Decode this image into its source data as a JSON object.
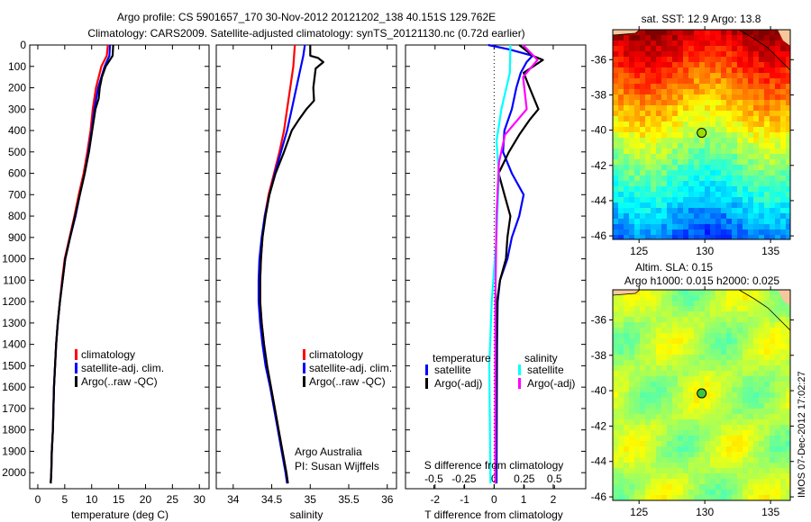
{
  "title": {
    "line1": "Argo profile: CS 5901657_170 30-Nov-2012 20121202_138 40.151S 129.762E",
    "line2": "Climatology: CARS2009. Satellite-adjusted climatology: synTS_20121130.nc (0.72d earlier)"
  },
  "colors": {
    "clim": "#ff0000",
    "sat": "#0000ff",
    "argo": "#000000",
    "s_sat": "#00ffff",
    "s_argo": "#ff00ff"
  },
  "credits": {
    "org": "Argo Australia",
    "pi": "PI: Susan Wijffels"
  },
  "timestamp": "IMOS 07-Dec-2012 17:02:27",
  "chart_data": [
    {
      "type": "line",
      "id": "temperature",
      "xlabel": "temperature (deg C)",
      "ylabel": "depth",
      "xlim": [
        -1.5,
        31.8
      ],
      "ylim": [
        0,
        2075
      ],
      "xticks": [
        0,
        5,
        10,
        15,
        20,
        25,
        30
      ],
      "yticks": [
        0,
        100,
        200,
        300,
        400,
        500,
        600,
        700,
        800,
        900,
        1000,
        1100,
        1200,
        1300,
        1400,
        1500,
        1600,
        1700,
        1800,
        1900,
        2000
      ],
      "legend": [
        "climatology",
        "satellite-adj. clim.",
        "Argo(..raw -QC)"
      ],
      "legend_position": "center-left",
      "series": [
        {
          "name": "climatology",
          "color_key": "clim",
          "depth": [
            0,
            50,
            100,
            200,
            300,
            400,
            500,
            600,
            700,
            800,
            900,
            1000,
            1100,
            1200,
            1300,
            1400,
            1500,
            1600,
            1700,
            1800,
            1900,
            2000,
            2050
          ],
          "values": [
            13.0,
            12.8,
            11.8,
            10.8,
            10.2,
            9.8,
            9.2,
            8.5,
            7.6,
            6.8,
            5.9,
            5.0,
            4.5,
            4.1,
            3.7,
            3.4,
            3.2,
            3.0,
            2.9,
            2.8,
            2.6,
            2.5,
            2.4
          ]
        },
        {
          "name": "satellite-adj. clim.",
          "color_key": "sat",
          "depth": [
            0,
            50,
            100,
            200,
            300,
            400,
            500,
            600,
            700,
            800,
            900,
            1000,
            1100,
            1200,
            1300,
            1400,
            1500,
            1600,
            1700,
            1800,
            1900,
            2000,
            2050
          ],
          "values": [
            13.4,
            13.3,
            12.4,
            11.2,
            10.5,
            10.0,
            9.4,
            8.7,
            7.8,
            7.0,
            6.0,
            5.1,
            4.6,
            4.1,
            3.7,
            3.4,
            3.2,
            3.0,
            2.9,
            2.8,
            2.6,
            2.5,
            2.4
          ]
        },
        {
          "name": "Argo(..raw -QC)",
          "color_key": "argo",
          "depth": [
            0,
            50,
            100,
            150,
            200,
            250,
            300,
            400,
            500,
            600,
            700,
            800,
            900,
            1000,
            1100,
            1200,
            1300,
            1400,
            1500,
            1600,
            1700,
            1800,
            1900,
            2000,
            2050
          ],
          "values": [
            14.0,
            13.9,
            12.6,
            11.9,
            11.5,
            11.3,
            10.7,
            10.1,
            9.5,
            8.7,
            7.8,
            6.9,
            6.0,
            5.1,
            4.6,
            4.1,
            3.7,
            3.4,
            3.2,
            3.0,
            2.9,
            2.8,
            2.6,
            2.5,
            2.4
          ]
        }
      ]
    },
    {
      "type": "line",
      "id": "salinity",
      "xlabel": "salinity",
      "xlim": [
        33.78,
        36.12
      ],
      "ylim": [
        0,
        2075
      ],
      "xticks": [
        34,
        34.5,
        35,
        35.5,
        36
      ],
      "legend": [
        "climatology",
        "satellite-adj. clim.",
        "Argo(..raw -QC)"
      ],
      "legend_position": "center-right",
      "series": [
        {
          "name": "climatology",
          "color_key": "clim",
          "depth": [
            0,
            100,
            200,
            300,
            400,
            500,
            600,
            700,
            800,
            900,
            1000,
            1100,
            1200,
            1300,
            1400,
            1500,
            1600,
            1700,
            1800,
            1900,
            2000,
            2050
          ],
          "values": [
            34.8,
            34.78,
            34.74,
            34.7,
            34.66,
            34.6,
            34.53,
            34.46,
            34.41,
            34.38,
            34.36,
            34.35,
            34.35,
            34.37,
            34.4,
            34.44,
            34.49,
            34.54,
            34.59,
            34.64,
            34.69,
            34.71
          ]
        },
        {
          "name": "satellite-adj. clim.",
          "color_key": "sat",
          "depth": [
            0,
            50,
            100,
            200,
            300,
            400,
            500,
            600,
            700,
            800,
            900,
            1000,
            1100,
            1200,
            1300,
            1400,
            1500,
            1600,
            1700,
            1800,
            1900,
            2000,
            2050
          ],
          "values": [
            34.93,
            34.91,
            34.88,
            34.82,
            34.76,
            34.7,
            34.62,
            34.54,
            34.47,
            34.41,
            34.37,
            34.34,
            34.33,
            34.33,
            34.35,
            34.38,
            34.42,
            34.48,
            34.53,
            34.58,
            34.63,
            34.68,
            34.7
          ]
        },
        {
          "name": "Argo(..raw -QC)",
          "color_key": "argo",
          "depth": [
            0,
            50,
            60,
            80,
            110,
            200,
            260,
            300,
            350,
            400,
            500,
            600,
            700,
            800,
            900,
            1000,
            1100,
            1200,
            1300,
            1400,
            1500,
            1600,
            1700,
            1800,
            1900,
            2000,
            2050
          ],
          "values": [
            35.0,
            35.0,
            35.1,
            35.17,
            35.07,
            35.04,
            35.05,
            34.95,
            34.85,
            34.76,
            34.66,
            34.55,
            34.47,
            34.42,
            34.38,
            34.36,
            34.35,
            34.35,
            34.37,
            34.4,
            34.44,
            34.49,
            34.54,
            34.59,
            34.64,
            34.69,
            34.71
          ]
        }
      ]
    },
    {
      "type": "line",
      "id": "difference",
      "xlabel": "T difference from climatology",
      "xlabel2": "S difference from climatology",
      "xlim": [
        -3.0,
        3.1
      ],
      "ylim": [
        0,
        2075
      ],
      "xticks": [
        -2,
        -1,
        0,
        1,
        2
      ],
      "xticks2": [
        -0.5,
        -0.25,
        0,
        0.25,
        0.5
      ],
      "xticks2_labels": [
        "-0.5",
        "-0.25",
        "0",
        "0.25",
        "0.5"
      ],
      "s_per_t": 0.245,
      "legend_headers": [
        "temperature",
        "salinity"
      ],
      "legend": [
        "satellite",
        "Argo(-adj)",
        "satellite",
        "Argo(-adj)"
      ],
      "series": [
        {
          "name": "T satellite",
          "units": "T",
          "color_key": "sat",
          "depth": [
            0,
            20,
            50,
            80,
            130,
            200,
            300,
            400,
            500,
            600,
            700,
            800,
            900,
            1000,
            1100,
            1200,
            1400,
            2050
          ],
          "values": [
            -0.2,
            0.5,
            1.3,
            1.1,
            0.9,
            0.75,
            0.6,
            0.35,
            0.3,
            0.6,
            1.0,
            0.85,
            0.6,
            0.45,
            0.2,
            0.12,
            0.1,
            0.08
          ]
        },
        {
          "name": "T Argo(-adj)",
          "units": "T",
          "color_key": "argo",
          "depth": [
            0,
            50,
            70,
            130,
            200,
            300,
            350,
            420,
            500,
            600,
            700,
            800,
            900,
            1000,
            1100,
            1200,
            1400,
            2050
          ],
          "values": [
            0.85,
            1.3,
            1.65,
            1.0,
            1.2,
            1.5,
            1.2,
            0.85,
            0.5,
            0.15,
            0.35,
            0.55,
            0.45,
            0.4,
            0.2,
            0.1,
            0.08,
            0.05
          ]
        },
        {
          "name": "S satellite",
          "units": "S",
          "color_key": "s_sat",
          "depth": [
            0,
            130,
            300,
            450,
            600,
            900,
            1200,
            1500,
            2050
          ],
          "values": [
            0.135,
            0.13,
            0.06,
            0.02,
            0.04,
            0.02,
            -0.02,
            -0.04,
            -0.03
          ]
        },
        {
          "name": "S Argo(-adj)",
          "units": "S",
          "color_key": "s_argo",
          "depth": [
            0,
            70,
            150,
            300,
            420,
            550,
            800,
            1200,
            2050
          ],
          "values": [
            0.24,
            0.36,
            0.24,
            0.27,
            0.09,
            0.04,
            0.02,
            0.01,
            0.01
          ]
        }
      ]
    },
    {
      "type": "heatmap",
      "id": "sst-map",
      "title": "sat. SST: 12.9 Argo: 13.8",
      "xlim": [
        123.0,
        136.5
      ],
      "ylim": [
        -46.2,
        -34.3
      ],
      "xticks": [
        125,
        130,
        135
      ],
      "yticks": [
        -36,
        -38,
        -40,
        -42,
        -44,
        -46
      ],
      "point": {
        "lon": 129.762,
        "lat": -40.151,
        "value": 13.8
      }
    },
    {
      "type": "heatmap",
      "id": "sla-map",
      "title": "Altim. SLA: 0.15",
      "subtitle": "Argo h1000: 0.015 h2000: 0.025",
      "xlim": [
        123.0,
        136.5
      ],
      "ylim": [
        -46.2,
        -34.3
      ],
      "xticks": [
        125,
        130,
        135
      ],
      "yticks": [
        -36,
        -38,
        -40,
        -42,
        -44,
        -46
      ],
      "point": {
        "lon": 129.762,
        "lat": -40.151
      }
    }
  ]
}
